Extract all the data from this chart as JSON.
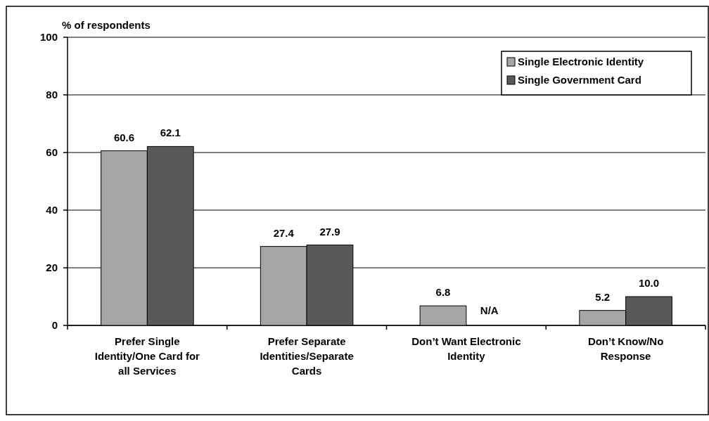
{
  "chart_data": {
    "type": "bar",
    "ylabel": "% of respondents",
    "categories": [
      "Prefer Single Identity/One Card for all Services",
      "Prefer Separate Identities/Separate Cards",
      "Don’t Want Electronic Identity",
      "Don’t Know/No Response"
    ],
    "series": [
      {
        "name": "Single Electronic Identity",
        "color": "#a6a6a6",
        "values": [
          60.6,
          27.4,
          6.8,
          5.2
        ],
        "value_labels": [
          "60.6",
          "27.4",
          "6.8",
          "5.2"
        ]
      },
      {
        "name": "Single Government Card",
        "color": "#595959",
        "values": [
          62.1,
          27.9,
          null,
          10.0
        ],
        "value_labels": [
          "62.1",
          "27.9",
          "N/A",
          "10.0"
        ]
      }
    ],
    "ylim": [
      0,
      100
    ],
    "yticks": [
      0,
      20,
      40,
      60,
      80,
      100
    ],
    "grid": "y",
    "legend": "top right"
  }
}
